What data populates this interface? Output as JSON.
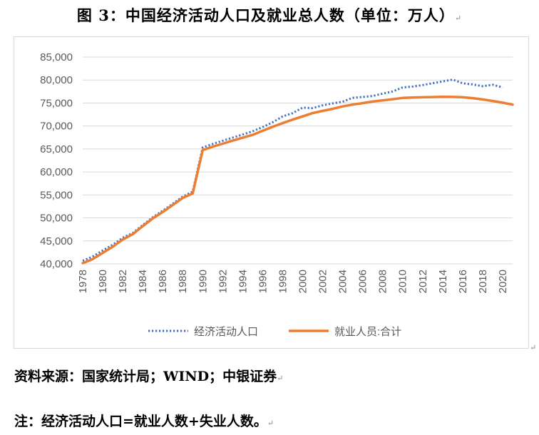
{
  "header": {
    "title": "图 3：中国经济活动人口及就业总人数（单位：万人）"
  },
  "chart_data": {
    "type": "line",
    "title": "图 3：中国经济活动人口及就业总人数（单位：万人）",
    "xlabel": "",
    "ylabel": "",
    "ylim": [
      40000,
      85000
    ],
    "y_ticks": [
      "40,000",
      "45,000",
      "50,000",
      "55,000",
      "60,000",
      "65,000",
      "70,000",
      "75,000",
      "80,000",
      "85,000"
    ],
    "x_tick_labels": [
      "1978",
      "1980",
      "1982",
      "1984",
      "1986",
      "1988",
      "1990",
      "1992",
      "1994",
      "1996",
      "1998",
      "2000",
      "2002",
      "2004",
      "2006",
      "2008",
      "2010",
      "2012",
      "2014",
      "2016",
      "2018",
      "2020"
    ],
    "legend_position": "bottom",
    "series": [
      {
        "name": "经济活动人口",
        "style": "dotted",
        "color": "#4472c4",
        "x": [
          1978,
          1979,
          1980,
          1981,
          1982,
          1983,
          1984,
          1985,
          1986,
          1987,
          1988,
          1989,
          1990,
          1991,
          1992,
          1993,
          1994,
          1995,
          1996,
          1997,
          1998,
          1999,
          2000,
          2001,
          2002,
          2003,
          2004,
          2005,
          2006,
          2007,
          2008,
          2009,
          2010,
          2011,
          2012,
          2013,
          2014,
          2015,
          2016,
          2017,
          2018,
          2019,
          2020
        ],
        "values": [
          40682,
          41592,
          42903,
          44165,
          45674,
          46707,
          48433,
          50112,
          51546,
          53060,
          54630,
          55707,
          65323,
          66091,
          66782,
          67468,
          68135,
          68855,
          69765,
          70800,
          72087,
          72791,
          73992,
          73884,
          74492,
          74911,
          75290,
          76120,
          76315,
          76531,
          77046,
          77510,
          78388,
          78579,
          78894,
          79300,
          79690,
          80091,
          79282,
          79042,
          78653,
          78985,
          78392
        ]
      },
      {
        "name": "就业人员:合计",
        "style": "solid",
        "color": "#ed7d31",
        "x": [
          1978,
          1979,
          1980,
          1981,
          1982,
          1983,
          1984,
          1985,
          1986,
          1987,
          1988,
          1989,
          1990,
          1991,
          1992,
          1993,
          1994,
          1995,
          1996,
          1997,
          1998,
          1999,
          2000,
          2001,
          2002,
          2003,
          2004,
          2005,
          2006,
          2007,
          2008,
          2009,
          2010,
          2011,
          2012,
          2013,
          2014,
          2015,
          2016,
          2017,
          2018,
          2019,
          2020,
          2021
        ],
        "values": [
          40152,
          41024,
          42361,
          43725,
          45295,
          46436,
          48197,
          49873,
          51282,
          52783,
          54334,
          55329,
          64749,
          65491,
          66152,
          66808,
          67455,
          68065,
          68950,
          69820,
          70637,
          71394,
          72085,
          72797,
          73280,
          73736,
          74264,
          74647,
          74978,
          75321,
          75564,
          75828,
          76105,
          76196,
          76254,
          76301,
          76349,
          76320,
          76245,
          76058,
          75782,
          75447,
          75064,
          74652
        ]
      }
    ]
  },
  "notes": {
    "source": "资料来源：国家统计局；WIND；中银证券",
    "note": "注：经济活动人口=就业人数+失业人数。"
  }
}
